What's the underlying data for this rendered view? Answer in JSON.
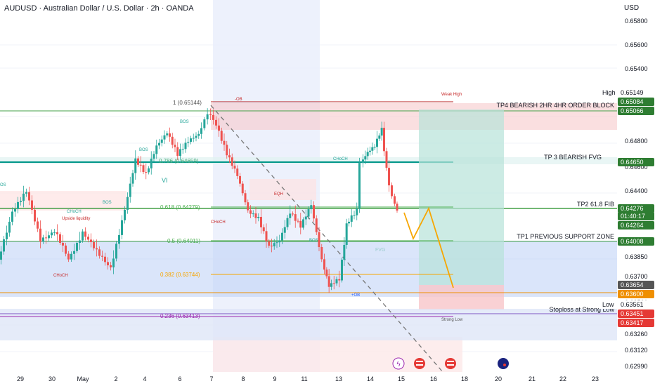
{
  "header": {
    "symbol_title": "AUDUSD · Australian Dollar / U.S. Dollar · 2h · OANDA",
    "currency": "USD"
  },
  "price_axis": {
    "ticks": [
      "0.65800",
      "0.65600",
      "0.65400",
      "0.64800",
      "0.64600",
      "0.64400",
      "0.63850",
      "0.63700",
      "0.63561",
      "0.63260",
      "0.63120",
      "0.62990"
    ],
    "tags": [
      {
        "label": "High",
        "value": "0.65149",
        "kind": "label"
      },
      {
        "value": "0.65084",
        "kind": "green"
      },
      {
        "value": "0.65066",
        "kind": "green"
      },
      {
        "value": "0.64650",
        "kind": "green"
      },
      {
        "value": "0.64276",
        "kind": "green"
      },
      {
        "value": "01:40:17",
        "kind": "green"
      },
      {
        "value": "0.64264",
        "kind": "green"
      },
      {
        "value": "0.64008",
        "kind": "green"
      },
      {
        "value": "0.63654",
        "kind": "gray"
      },
      {
        "value": "0.63600",
        "kind": "orange"
      },
      {
        "label": "Low",
        "value": "0.63561",
        "kind": "label"
      },
      {
        "value": "0.63451",
        "kind": "red"
      },
      {
        "value": "0.63417",
        "kind": "red"
      }
    ]
  },
  "time_axis": {
    "labels": [
      "29",
      "30",
      "May",
      "2",
      "4",
      "6",
      "7",
      "8",
      "9",
      "11",
      "13",
      "14",
      "15",
      "16",
      "18",
      "20",
      "21",
      "22",
      "23"
    ]
  },
  "zones": {
    "tp4": "TP4 BEARISH 2HR 4HR ORDER BLOCK",
    "tp3": "TP 3 BEARISH FVG",
    "tp2": "TP2 61.8 FIB",
    "tp1": "TP1 PREVIOUS SUPPORT ZONE",
    "stoploss": "Stoploss at Strong Low"
  },
  "fib": {
    "f1": "1 (0.65144)",
    "f786": "0.786 (0.64659)",
    "f618": "0.618 (0.64279)",
    "f5": "0.5 (0.64011)",
    "f382": "0.382 (0.63744)",
    "f236": "0.236 (0.63413)"
  },
  "annotations": {
    "weak_high": "Weak High",
    "strong_low": "Strong Low",
    "ob_neg": "-OB",
    "ob_pos": "+OB",
    "vi": "VI",
    "bos": "BOS",
    "choch": "CHoCH",
    "eqh": "EQH",
    "fvg": "FVG",
    "upside_liquidity": "Upside liquidity",
    "os": "OS"
  },
  "colors": {
    "bull": "#26a69a",
    "bear": "#ef5350",
    "green_line": "#4caf50",
    "orange": "#f7a600",
    "accent_blue": "#2962ff"
  }
}
